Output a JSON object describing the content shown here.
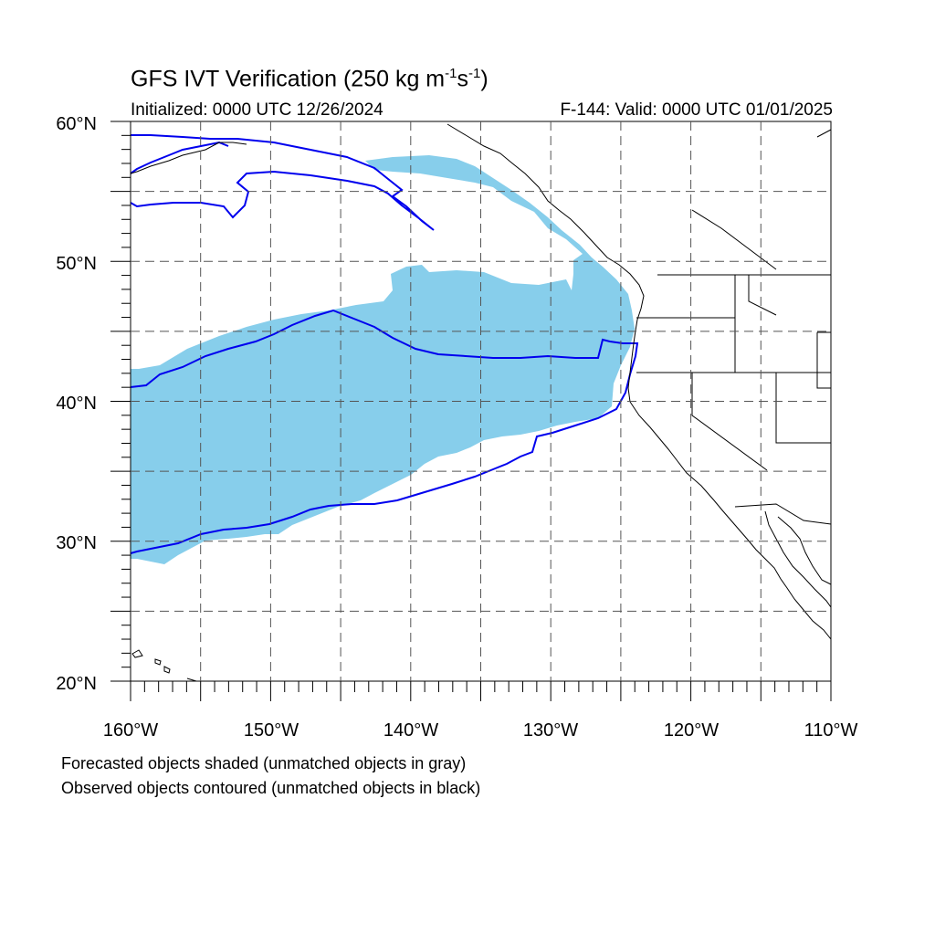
{
  "title": {
    "main": "GFS IVT Verification (250 kg m",
    "exp1": "-1",
    "mid": "s",
    "exp2": "-1",
    "close": ")"
  },
  "initialized": "Initialized: 0000 UTC 12/26/2024",
  "valid": "F-144: Valid: 0000 UTC 01/01/2025",
  "notes": {
    "line1": "Forecasted objects shaded (unmatched objects in gray)",
    "line2": "Observed objects contoured (unmatched objects in black)"
  },
  "axes": {
    "lat_labels": [
      "60°N",
      "50°N",
      "40°N",
      "30°N",
      "20°N"
    ],
    "lon_labels": [
      "160°W",
      "150°W",
      "140°W",
      "130°W",
      "120°W",
      "110°W"
    ],
    "lon_range": [
      -160,
      -110
    ],
    "lat_range": [
      20,
      60
    ]
  },
  "colors": {
    "forecast_fill": "#87ceeb",
    "observed_contour": "#0000ee",
    "coastline": "#000000",
    "grid": "#555555"
  }
}
